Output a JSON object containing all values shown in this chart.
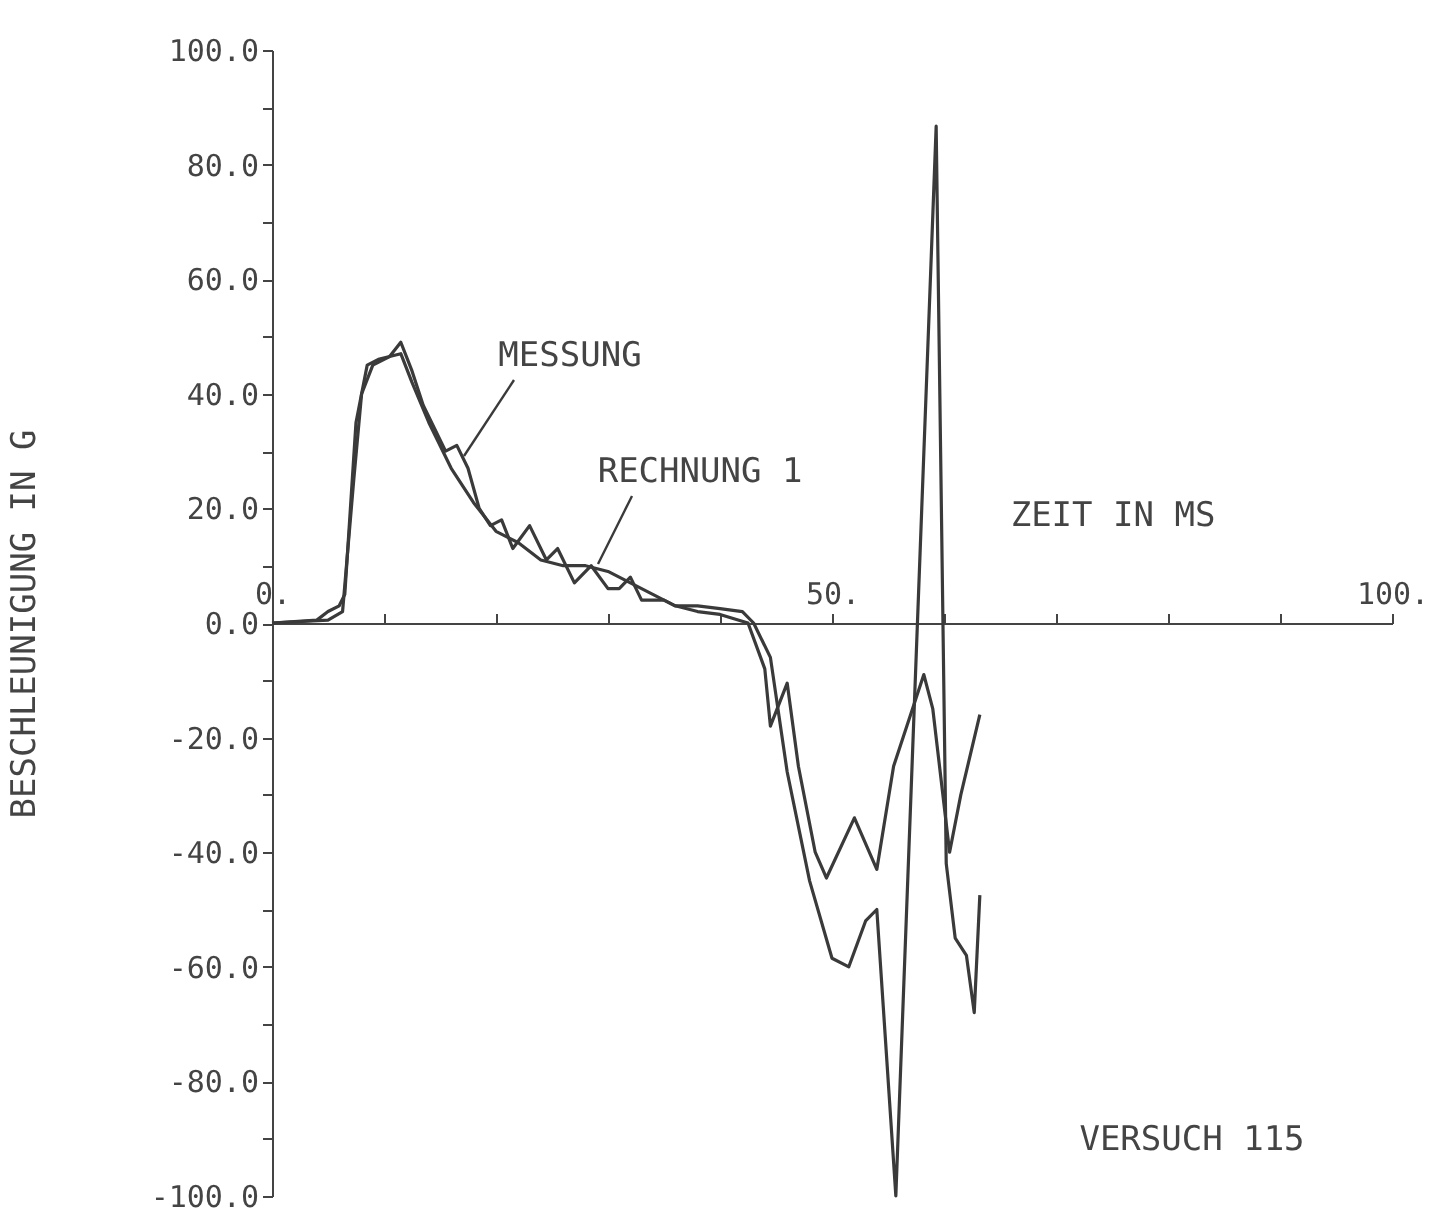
{
  "chart_data": {
    "type": "line",
    "xlabel": "ZEIT IN MS",
    "ylabel": "BESCHLEUNIGUNG IN G",
    "annotations": [
      "VERSUCH 115"
    ],
    "xlim": [
      0,
      100
    ],
    "ylim": [
      -100,
      100
    ],
    "xticks": [
      {
        "value": 0,
        "label": "0."
      },
      {
        "value": 10,
        "label": null
      },
      {
        "value": 20,
        "label": null
      },
      {
        "value": 30,
        "label": null
      },
      {
        "value": 40,
        "label": null
      },
      {
        "value": 50,
        "label": "50."
      },
      {
        "value": 60,
        "label": null
      },
      {
        "value": 70,
        "label": null
      },
      {
        "value": 80,
        "label": null
      },
      {
        "value": 90,
        "label": null
      },
      {
        "value": 100,
        "label": "100."
      }
    ],
    "yticks": [
      {
        "value": -100,
        "label": "-100.0"
      },
      {
        "value": -90,
        "label": null
      },
      {
        "value": -80,
        "label": "-80.0"
      },
      {
        "value": -70,
        "label": null
      },
      {
        "value": -60,
        "label": "-60.0"
      },
      {
        "value": -50,
        "label": null
      },
      {
        "value": -40,
        "label": "-40.0"
      },
      {
        "value": -30,
        "label": null
      },
      {
        "value": -20,
        "label": "-20.0"
      },
      {
        "value": -10,
        "label": null
      },
      {
        "value": 0,
        "label": "0.0"
      },
      {
        "value": 10,
        "label": null
      },
      {
        "value": 20,
        "label": "20.0"
      },
      {
        "value": 30,
        "label": null
      },
      {
        "value": 40,
        "label": "40.0"
      },
      {
        "value": 50,
        "label": null
      },
      {
        "value": 60,
        "label": "60.0"
      },
      {
        "value": 70,
        "label": null
      },
      {
        "value": 80,
        "label": "80.0"
      },
      {
        "value": 90,
        "label": null
      },
      {
        "value": 100,
        "label": "100.0"
      }
    ],
    "line_style": "solid",
    "marker": "none",
    "series": [
      {
        "name": "MESSUNG",
        "color": "#3a3a3a",
        "x": [
          0,
          4,
          5,
          6,
          6.5,
          7.5,
          8.5,
          9.5,
          10.5,
          11.5,
          12.5,
          13.5,
          14.5,
          15.5,
          16.5,
          17.5,
          18.5,
          19.5,
          20.5,
          21.5,
          23,
          24.5,
          25.5,
          27,
          28.5,
          30,
          31,
          32,
          33,
          35,
          36,
          38,
          40,
          42,
          43,
          44.5,
          46,
          48,
          50,
          51.5,
          53,
          54,
          55.7,
          59.3,
          60.2,
          61,
          62,
          62.7,
          63.2
        ],
        "values": [
          0,
          0.5,
          2,
          3,
          5,
          35,
          45,
          46,
          46.5,
          49,
          44,
          38,
          34,
          30,
          31,
          27,
          20,
          17,
          18,
          13,
          17,
          11,
          13,
          7,
          10,
          6,
          6,
          8,
          4,
          4,
          3,
          3,
          2.5,
          2,
          0,
          -6,
          -26,
          -45,
          -58.5,
          -60,
          -52,
          -50,
          -100,
          86.7,
          -42,
          -55,
          -58,
          -68,
          -47.5
        ]
      },
      {
        "name": "RECHNUNG 1",
        "color": "#3a3a3a",
        "x": [
          0,
          5,
          6.3,
          7.3,
          8,
          9,
          10.5,
          11.5,
          12.5,
          14,
          16,
          18,
          20,
          22,
          24,
          26,
          28,
          30,
          32,
          34,
          36,
          38,
          40,
          42.5,
          44,
          44.5,
          46,
          47,
          48.5,
          49.5,
          52,
          54,
          55.5,
          58.2,
          59,
          60.5,
          61.5,
          63.2
        ],
        "values": [
          0,
          0.5,
          2,
          25,
          40,
          45,
          46.5,
          47,
          42,
          35,
          27,
          21,
          16,
          14,
          11,
          10,
          10,
          9,
          7,
          5,
          3,
          2,
          1.5,
          0,
          -8,
          -18,
          -10.5,
          -25,
          -40,
          -44.5,
          -34,
          -43,
          -25,
          -9,
          -15,
          -40,
          -30,
          -16
        ]
      }
    ]
  }
}
